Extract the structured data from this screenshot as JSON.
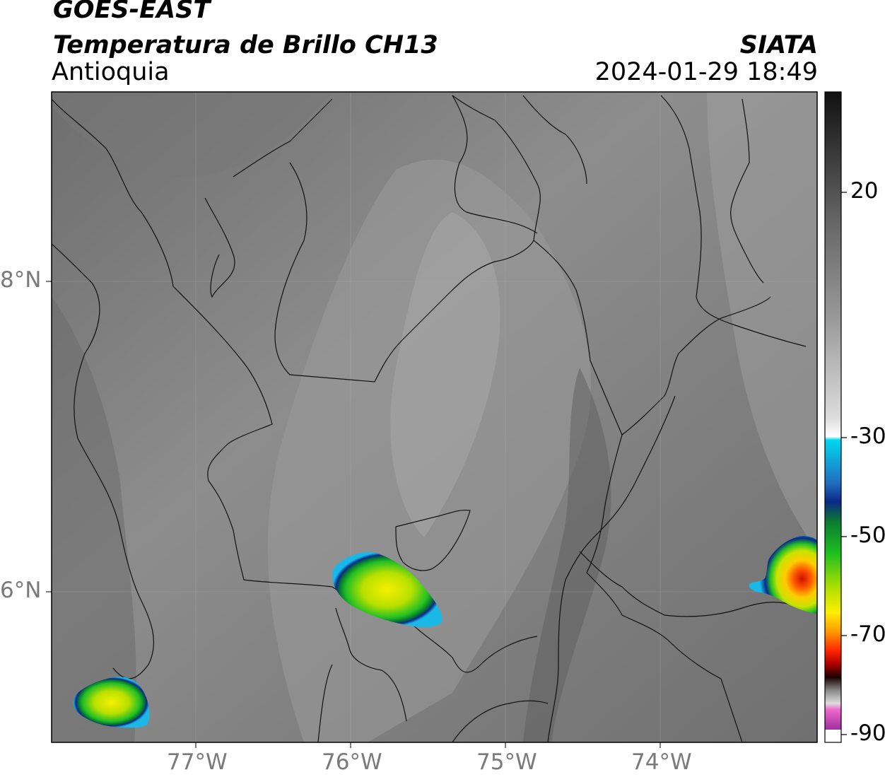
{
  "header": {
    "satellite": "GOES-EAST",
    "product": "Temperatura de Brillo CH13",
    "region": "Antioquia",
    "organization": "SIATA",
    "timestamp": "2024-01-29 18:49"
  },
  "map": {
    "lon_range": [
      -77.95,
      -73.05
    ],
    "lat_range": [
      5.0,
      9.2
    ],
    "x_ticks": [
      {
        "value": -77,
        "label": "77°W"
      },
      {
        "value": -76,
        "label": "76°W"
      },
      {
        "value": -75,
        "label": "75°W"
      },
      {
        "value": -74,
        "label": "74°W"
      }
    ],
    "y_ticks": [
      {
        "value": 8,
        "label": "8°N"
      },
      {
        "value": 6,
        "label": "6°N"
      }
    ],
    "gridlines": true,
    "cold_cloud_cells": [
      {
        "name": "cell-southwest",
        "lon": -77.5,
        "lat": 5.15
      },
      {
        "name": "cell-center",
        "lon": -75.9,
        "lat": 5.98
      },
      {
        "name": "cell-east",
        "lon": -73.15,
        "lat": 6.1
      }
    ]
  },
  "colorbar": {
    "units_range": [
      -95,
      30
    ],
    "ticks": [
      {
        "value": 20,
        "label": "20"
      },
      {
        "value": -30,
        "label": "-30"
      },
      {
        "value": -50,
        "label": "-50"
      },
      {
        "value": -70,
        "label": "-70"
      },
      {
        "value": -90,
        "label": "-90"
      }
    ],
    "colors": {
      "warm_black": "#111111",
      "gray": "#8a8a8a",
      "white": "#ffffff",
      "cyan": "#00d8f0",
      "blue": "#0a2a88",
      "green": "#20c020",
      "yellow": "#ffee00",
      "orange": "#ff9900",
      "red": "#dd0000",
      "dark": "#1a0000",
      "pink": "#ee66cc",
      "purple": "#8a1a8a"
    }
  }
}
